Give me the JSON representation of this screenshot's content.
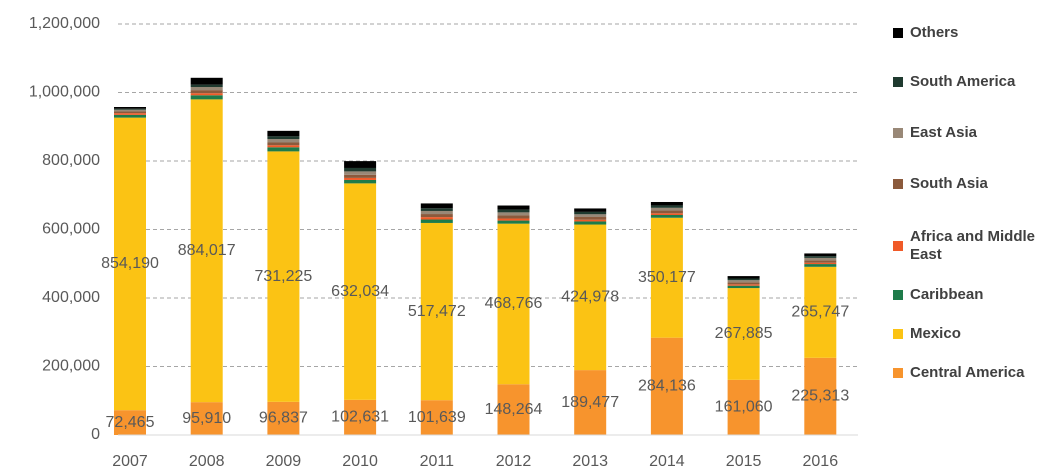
{
  "chart_data": {
    "type": "bar",
    "stacked": true,
    "categories": [
      "2007",
      "2008",
      "2009",
      "2010",
      "2011",
      "2012",
      "2013",
      "2014",
      "2015",
      "2016"
    ],
    "series": [
      {
        "name": "Central America",
        "color": "#f7942d",
        "values": [
          72465,
          95910,
          96837,
          102631,
          101639,
          148264,
          189477,
          284136,
          161060,
          225313
        ],
        "value_labels": [
          "72,465",
          "95,910",
          "96,837",
          "102,631",
          "101,639",
          "148,264",
          "189,477",
          "284,136",
          "161,060",
          "225,313"
        ]
      },
      {
        "name": "Mexico",
        "color": "#fbc314",
        "values": [
          854190,
          884017,
          731225,
          632034,
          517472,
          468766,
          424978,
          350177,
          267885,
          265747
        ],
        "value_labels": [
          "854,190",
          "884,017",
          "731,225",
          "632,034",
          "517,472",
          "468,766",
          "424,978",
          "350,177",
          "267,885",
          "265,747"
        ]
      },
      {
        "name": "Caribbean",
        "color": "#1e7b4a",
        "values": [
          8000,
          12000,
          12000,
          10000,
          10000,
          9000,
          9000,
          8000,
          7000,
          8000
        ]
      },
      {
        "name": "Africa and Middle East",
        "color": "#f05a28",
        "values": [
          5000,
          6000,
          6000,
          6000,
          7000,
          6000,
          5000,
          5000,
          4000,
          4000
        ]
      },
      {
        "name": "South Asia",
        "color": "#8b5a3c",
        "values": [
          5000,
          9000,
          8000,
          9000,
          9000,
          9000,
          8000,
          8000,
          6000,
          7000
        ]
      },
      {
        "name": "East Asia",
        "color": "#998877",
        "values": [
          5000,
          9000,
          10000,
          10000,
          9000,
          9000,
          8000,
          8000,
          6000,
          7000
        ]
      },
      {
        "name": "South America",
        "color": "#1f3a2f",
        "values": [
          3000,
          7000,
          8000,
          10000,
          8000,
          8000,
          7000,
          7000,
          5000,
          5000
        ]
      },
      {
        "name": "Others",
        "color": "#000000",
        "values": [
          5000,
          20000,
          16000,
          20000,
          14000,
          12000,
          10000,
          10000,
          7000,
          8000
        ]
      }
    ],
    "ylim": [
      0,
      1200000
    ],
    "yticks": [
      0,
      {
        "value": 200000,
        "label": "200,000"
      },
      {
        "value": 400000,
        "label": "400,000"
      },
      {
        "value": 600000,
        "label": "600,000"
      },
      {
        "value": 800000,
        "label": "800,000"
      },
      {
        "value": 1000000,
        "label": "1,000,000"
      },
      {
        "value": 1200000,
        "label": "1,200,000"
      }
    ],
    "grid": true,
    "legend": "right"
  }
}
